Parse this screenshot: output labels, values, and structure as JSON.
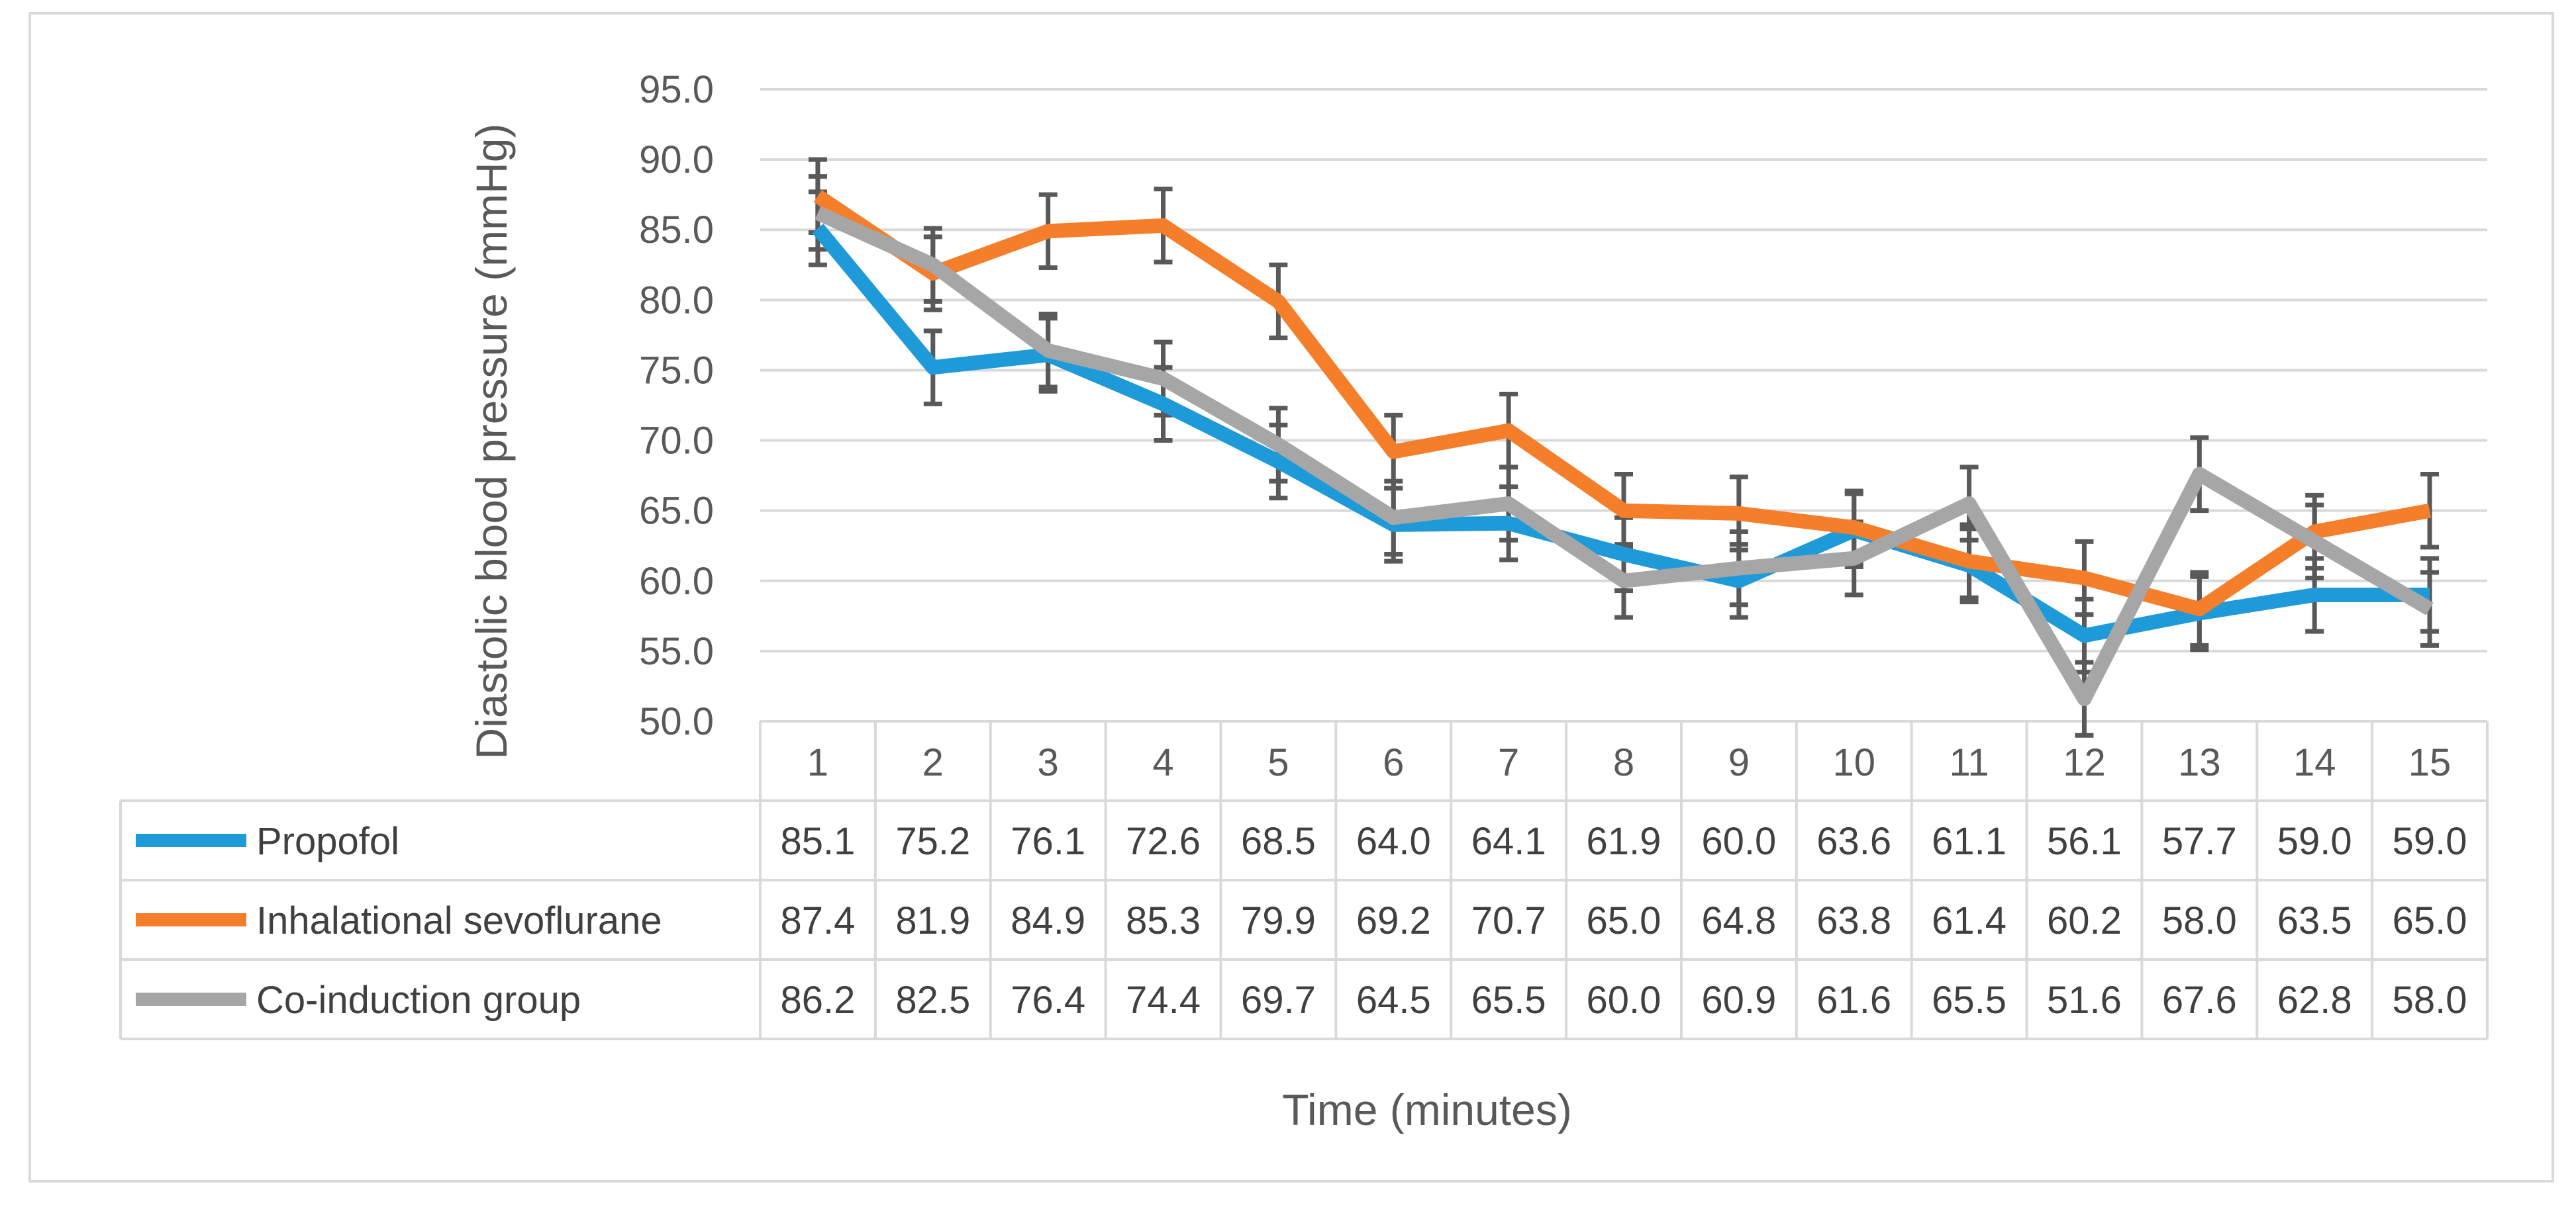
{
  "chart_data": {
    "type": "line",
    "title": "",
    "ylabel": "Diastolic blood pressure (mmHg)",
    "xlabel": "Time (minutes)",
    "ylim": [
      50,
      95
    ],
    "ytick_step": 5,
    "ytick_labels": [
      "50.0",
      "55.0",
      "60.0",
      "65.0",
      "70.0",
      "75.0",
      "80.0",
      "85.0",
      "90.0",
      "95.0"
    ],
    "categories": [
      "1",
      "2",
      "3",
      "4",
      "5",
      "6",
      "7",
      "8",
      "9",
      "10",
      "11",
      "12",
      "13",
      "14",
      "15"
    ],
    "error_bar": 2.6,
    "grid": true,
    "legend": "data-table",
    "series": [
      {
        "name": "Propofol",
        "color": "#1f9ad8",
        "values": [
          85.1,
          75.2,
          76.1,
          72.6,
          68.5,
          64.0,
          64.1,
          61.9,
          60.0,
          63.6,
          61.1,
          56.1,
          57.7,
          59.0,
          59.0
        ],
        "labels": [
          "85.1",
          "75.2",
          "76.1",
          "72.6",
          "68.5",
          "64.0",
          "64.1",
          "61.9",
          "60.0",
          "63.6",
          "61.1",
          "56.1",
          "57.7",
          "59.0",
          "59.0"
        ]
      },
      {
        "name": "Inhalational sevoflurane",
        "color": "#f57e2a",
        "values": [
          87.4,
          81.9,
          84.9,
          85.3,
          79.9,
          69.2,
          70.7,
          65.0,
          64.8,
          63.8,
          61.4,
          60.2,
          58.0,
          63.5,
          65.0
        ],
        "labels": [
          "87.4",
          "81.9",
          "84.9",
          "85.3",
          "79.9",
          "69.2",
          "70.7",
          "65.0",
          "64.8",
          "63.8",
          "61.4",
          "60.2",
          "58.0",
          "63.5",
          "65.0"
        ]
      },
      {
        "name": "Co-induction group",
        "color": "#a6a6a6",
        "values": [
          86.2,
          82.5,
          76.4,
          74.4,
          69.7,
          64.5,
          65.5,
          60.0,
          60.9,
          61.6,
          65.5,
          51.6,
          67.6,
          62.8,
          58.0
        ],
        "labels": [
          "86.2",
          "82.5",
          "76.4",
          "74.4",
          "69.7",
          "64.5",
          "65.5",
          "60.0",
          "60.9",
          "61.6",
          "65.5",
          "51.6",
          "67.6",
          "62.8",
          "58.0"
        ]
      }
    ]
  }
}
